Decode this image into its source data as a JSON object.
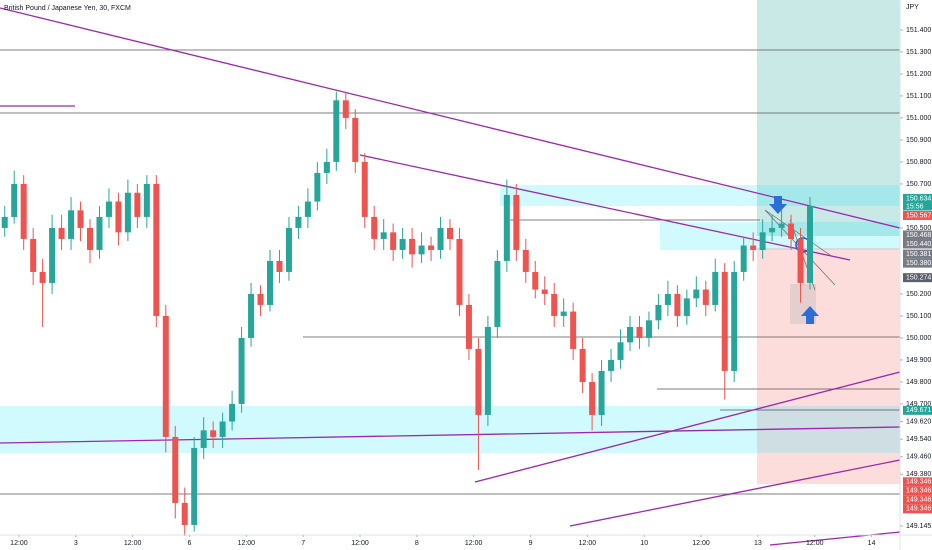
{
  "chart_data": {
    "type": "candlestick",
    "title": "British Pound / Japanese Yen, 30, FXCM",
    "currency": "JPY",
    "up_color": "#26a69a",
    "down_color": "#ef5350",
    "xlim": [
      0,
      95
    ],
    "ylim": [
      149.118,
      151.536
    ],
    "xticks": [
      {
        "value": 2,
        "label": "12:00"
      },
      {
        "value": 8,
        "label": "3"
      },
      {
        "value": 14,
        "label": "12:00"
      },
      {
        "value": 20,
        "label": "6"
      },
      {
        "value": 26,
        "label": "12:00"
      },
      {
        "value": 32,
        "label": "7"
      },
      {
        "value": 38,
        "label": "12:00"
      },
      {
        "value": 44,
        "label": "8"
      },
      {
        "value": 50,
        "label": "12:00"
      },
      {
        "value": 56,
        "label": "9"
      },
      {
        "value": 62,
        "label": "12:00"
      },
      {
        "value": 68,
        "label": "10"
      },
      {
        "value": 74,
        "label": "12:00"
      },
      {
        "value": 80,
        "label": "13"
      },
      {
        "value": 86,
        "label": "12:00"
      },
      {
        "value": 92,
        "label": "14"
      }
    ],
    "yticks": [
      {
        "value": 151.4,
        "label": "151.400"
      },
      {
        "value": 151.3,
        "label": "151.300"
      },
      {
        "value": 151.2,
        "label": "151.200"
      },
      {
        "value": 151.1,
        "label": "151.100"
      },
      {
        "value": 151.0,
        "label": "151.000"
      },
      {
        "value": 150.9,
        "label": "150.900"
      },
      {
        "value": 150.8,
        "label": "150.800"
      },
      {
        "value": 150.7,
        "label": "150.700"
      },
      {
        "value": 150.5,
        "label": "150.500"
      },
      {
        "value": 150.2,
        "label": "150.200"
      },
      {
        "value": 150.1,
        "label": "150.100"
      },
      {
        "value": 150.0,
        "label": "150.000"
      },
      {
        "value": 149.9,
        "label": "149.900"
      },
      {
        "value": 149.8,
        "label": "149.800"
      },
      {
        "value": 149.7,
        "label": "149.700"
      },
      {
        "value": 149.62,
        "label": "149.620"
      },
      {
        "value": 149.54,
        "label": "149.540"
      },
      {
        "value": 149.46,
        "label": "149.460"
      },
      {
        "value": 149.38,
        "label": "149.380"
      },
      {
        "value": 149.145,
        "label": "149.145"
      }
    ],
    "price_tags": [
      {
        "value": 150.634,
        "label": "150.634",
        "color": "#26a69a"
      },
      {
        "value": 150.567,
        "label": "150.567",
        "color": "#ef5350"
      },
      {
        "value": 150.468,
        "label": "150.468",
        "color": "#787b86"
      },
      {
        "value": 150.44,
        "label": "150.440",
        "color": "#787b86"
      },
      {
        "value": 150.381,
        "label": "150.381",
        "color": "#787b86"
      },
      {
        "value": 150.38,
        "label": "150.380",
        "color": "#787b86"
      },
      {
        "value": 150.274,
        "label": "150.274",
        "color": "#5d606b"
      },
      {
        "value": 149.671,
        "label": "149.671",
        "color": "#26a69a"
      },
      {
        "value": 149.346,
        "label": "149.346",
        "color": "#ef5350"
      },
      {
        "value": 149.346,
        "label": "149.346",
        "color": "#ef5350"
      },
      {
        "value": 149.346,
        "label": "149.346",
        "color": "#ef5350"
      },
      {
        "value": 149.346,
        "label": "149.346",
        "color": "#ef5350"
      }
    ],
    "countdown": "15:56",
    "candles": [
      [
        150.5,
        150.6,
        150.46,
        150.55
      ],
      [
        150.55,
        150.76,
        150.52,
        150.7
      ],
      [
        150.7,
        150.74,
        150.4,
        150.45
      ],
      [
        150.45,
        150.5,
        150.24,
        150.3
      ],
      [
        150.3,
        150.36,
        150.05,
        150.25
      ],
      [
        150.25,
        150.56,
        150.2,
        150.5
      ],
      [
        150.5,
        150.56,
        150.4,
        150.45
      ],
      [
        150.45,
        150.64,
        150.4,
        150.58
      ],
      [
        150.58,
        150.62,
        150.44,
        150.5
      ],
      [
        150.5,
        150.54,
        150.34,
        150.4
      ],
      [
        150.4,
        150.6,
        150.36,
        150.55
      ],
      [
        150.55,
        150.68,
        150.5,
        150.62
      ],
      [
        150.62,
        150.66,
        150.42,
        150.48
      ],
      [
        150.48,
        150.72,
        150.44,
        150.66
      ],
      [
        150.66,
        150.7,
        150.5,
        150.55
      ],
      [
        150.55,
        150.74,
        150.5,
        150.7
      ],
      [
        150.7,
        150.74,
        150.05,
        150.1
      ],
      [
        150.1,
        150.15,
        149.48,
        149.55
      ],
      [
        149.55,
        149.6,
        149.18,
        149.25
      ],
      [
        149.25,
        149.32,
        149.1,
        149.15
      ],
      [
        149.15,
        149.55,
        149.12,
        149.5
      ],
      [
        149.5,
        149.64,
        149.45,
        149.58
      ],
      [
        149.58,
        149.62,
        149.5,
        149.55
      ],
      [
        149.55,
        149.66,
        149.5,
        149.62
      ],
      [
        149.62,
        149.76,
        149.58,
        149.7
      ],
      [
        149.7,
        150.05,
        149.66,
        150.0
      ],
      [
        150.0,
        150.25,
        149.96,
        150.2
      ],
      [
        150.2,
        150.24,
        150.1,
        150.15
      ],
      [
        150.15,
        150.4,
        150.12,
        150.35
      ],
      [
        150.35,
        150.4,
        150.25,
        150.3
      ],
      [
        150.3,
        150.55,
        150.26,
        150.5
      ],
      [
        150.5,
        150.6,
        150.45,
        150.55
      ],
      [
        150.55,
        150.68,
        150.5,
        150.62
      ],
      [
        150.62,
        150.8,
        150.58,
        150.75
      ],
      [
        150.75,
        150.86,
        150.7,
        150.8
      ],
      [
        150.8,
        151.12,
        150.76,
        151.08
      ],
      [
        151.08,
        151.12,
        150.95,
        151.0
      ],
      [
        151.0,
        151.04,
        150.75,
        150.8
      ],
      [
        150.8,
        150.84,
        150.5,
        150.55
      ],
      [
        150.55,
        150.6,
        150.4,
        150.45
      ],
      [
        150.45,
        150.54,
        150.4,
        150.48
      ],
      [
        150.48,
        150.52,
        150.35,
        150.4
      ],
      [
        150.4,
        150.5,
        150.36,
        150.45
      ],
      [
        150.45,
        150.5,
        150.32,
        150.38
      ],
      [
        150.38,
        150.48,
        150.34,
        150.42
      ],
      [
        150.42,
        150.46,
        150.35,
        150.4
      ],
      [
        150.4,
        150.55,
        150.36,
        150.5
      ],
      [
        150.5,
        150.54,
        150.4,
        150.45
      ],
      [
        150.45,
        150.5,
        150.1,
        150.15
      ],
      [
        150.15,
        150.2,
        149.9,
        149.95
      ],
      [
        149.95,
        150.0,
        149.4,
        149.65
      ],
      [
        149.65,
        150.1,
        149.6,
        150.05
      ],
      [
        150.05,
        150.4,
        150.0,
        150.35
      ],
      [
        150.35,
        150.72,
        150.3,
        150.65
      ],
      [
        150.65,
        150.7,
        150.35,
        150.4
      ],
      [
        150.4,
        150.45,
        150.25,
        150.3
      ],
      [
        150.3,
        150.35,
        150.18,
        150.22
      ],
      [
        150.22,
        150.28,
        150.15,
        150.2
      ],
      [
        150.2,
        150.25,
        150.05,
        150.1
      ],
      [
        150.1,
        150.18,
        150.05,
        150.12
      ],
      [
        150.12,
        150.16,
        149.9,
        149.95
      ],
      [
        149.95,
        150.0,
        149.75,
        149.8
      ],
      [
        149.8,
        149.84,
        149.58,
        149.65
      ],
      [
        149.65,
        149.9,
        149.6,
        149.85
      ],
      [
        149.85,
        149.95,
        149.8,
        149.9
      ],
      [
        149.9,
        150.04,
        149.86,
        149.98
      ],
      [
        149.98,
        150.1,
        149.94,
        150.05
      ],
      [
        150.05,
        150.1,
        149.95,
        150.0
      ],
      [
        150.0,
        150.12,
        149.96,
        150.08
      ],
      [
        150.08,
        150.2,
        150.04,
        150.15
      ],
      [
        150.15,
        150.26,
        150.1,
        150.2
      ],
      [
        150.2,
        150.24,
        150.05,
        150.1
      ],
      [
        150.1,
        150.22,
        150.06,
        150.18
      ],
      [
        150.18,
        150.28,
        150.14,
        150.22
      ],
      [
        150.22,
        150.26,
        150.1,
        150.15
      ],
      [
        150.15,
        150.36,
        150.12,
        150.3
      ],
      [
        150.3,
        150.34,
        149.72,
        149.85
      ],
      [
        149.85,
        150.35,
        149.8,
        150.3
      ],
      [
        150.3,
        150.46,
        150.26,
        150.42
      ],
      [
        150.42,
        150.48,
        150.35,
        150.4
      ],
      [
        150.4,
        150.54,
        150.36,
        150.48
      ],
      [
        150.48,
        150.56,
        150.44,
        150.5
      ],
      [
        150.5,
        150.58,
        150.46,
        150.52
      ],
      [
        150.52,
        150.56,
        150.4,
        150.45
      ],
      [
        150.45,
        150.5,
        150.16,
        150.25
      ],
      [
        150.25,
        150.64,
        150.22,
        150.6
      ]
    ]
  }
}
